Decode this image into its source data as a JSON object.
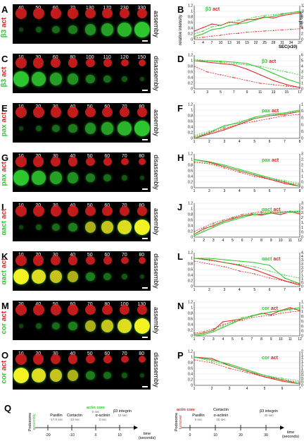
{
  "rows": [
    {
      "img_label": "A",
      "chart_label": "B",
      "vlabel_a": "β3",
      "vlabel_b": "act",
      "stage": "assembly",
      "times": [
        "40",
        "50",
        "60",
        "70",
        "130",
        "170",
        "230",
        "330"
      ],
      "chart_title_a": "β3",
      "chart_title_b": "act",
      "yleft_label": "relative intensity",
      "yright_label": "area μm²",
      "right_label2": "area",
      "xlabel": "SEC(x10)",
      "xticks": [
        "1",
        "4",
        "7",
        "10",
        "13",
        "16",
        "19",
        "22",
        "25",
        "28",
        "31",
        "34",
        "37"
      ],
      "ylticks": [
        "0",
        "0.2",
        "0.4",
        "0.6",
        "0.8",
        "1",
        "1.2"
      ],
      "yrticks": [
        "0",
        "2",
        "4",
        "6",
        "8",
        "10",
        "12"
      ]
    },
    {
      "img_label": "C",
      "chart_label": "D",
      "vlabel_a": "β3",
      "vlabel_b": "act",
      "stage": "disassembly",
      "times": [
        "10",
        "30",
        "60",
        "80",
        "100",
        "110",
        "120",
        "150"
      ],
      "chart_title_a": "β3",
      "chart_title_b": "act",
      "xticks": [
        "1",
        "3",
        "5",
        "7",
        "9",
        "11",
        "13",
        "15",
        "17"
      ],
      "ylticks": [
        "0",
        "0.2",
        "0.4",
        "0.6",
        "0.8",
        "1",
        "1.2"
      ],
      "yrticks": [
        "0",
        "1",
        "2",
        "3",
        "4",
        "5",
        "6"
      ]
    },
    {
      "img_label": "E",
      "chart_label": "F",
      "vlabel_a": "pax",
      "vlabel_b": "act",
      "stage": "assembly",
      "times": [
        "10",
        "20",
        "30",
        "40",
        "50",
        "60",
        "70",
        "80"
      ],
      "chart_title_a": "pax",
      "chart_title_b": "act",
      "xticks": [
        "1",
        "2",
        "3",
        "4",
        "5",
        "6",
        "7",
        "8"
      ],
      "ylticks": [
        "0",
        "0.2",
        "0.4",
        "0.6",
        "0.8",
        "1",
        "1.2"
      ],
      "yrticks": [
        "0",
        "0.2",
        "0.4",
        "0.6",
        "0.8",
        "1"
      ]
    },
    {
      "img_label": "G",
      "chart_label": "H",
      "vlabel_a": "pax",
      "vlabel_b": "act",
      "stage": "disassembly",
      "times": [
        "10",
        "20",
        "30",
        "40",
        "50",
        "60",
        "70",
        "80"
      ],
      "chart_title_a": "pax",
      "chart_title_b": "act",
      "xticks": [
        "1",
        "2",
        "3",
        "4",
        "5",
        "6",
        "7",
        "8"
      ],
      "ylticks": [
        "0",
        "0.2",
        "0.4",
        "0.6",
        "0.8",
        "1",
        "1.2"
      ],
      "yrticks": [
        "0",
        "0.5",
        "1",
        "1.5",
        "2",
        "2.5",
        "3"
      ]
    },
    {
      "img_label": "I",
      "chart_label": "J",
      "vlabel_a": "αact",
      "vlabel_b": "act",
      "stage": "assembly",
      "times": [
        "10",
        "20",
        "30",
        "40",
        "50",
        "60",
        "70",
        "80"
      ],
      "chart_title_a": "αact",
      "chart_title_b": "act",
      "xticks": [
        "1",
        "2",
        "3",
        "4",
        "5",
        "6",
        "7",
        "8",
        "9",
        "10",
        "11",
        "12"
      ],
      "ylticks": [
        "0",
        "0.2",
        "0.4",
        "0.6",
        "0.8",
        "1",
        "1.2"
      ],
      "yrticks": [
        "0",
        "0.5",
        "1",
        "1.5",
        "2",
        "2.5",
        "3",
        "3.5"
      ]
    },
    {
      "img_label": "K",
      "chart_label": "L",
      "vlabel_a": "αact",
      "vlabel_b": "act",
      "stage": "disassembly",
      "times": [
        "10",
        "20",
        "30",
        "40",
        "50",
        "60",
        "70",
        "80"
      ],
      "chart_title_a": "αact",
      "chart_title_b": "act",
      "xticks": [
        "1",
        "2",
        "3",
        "4",
        "5",
        "6",
        "7",
        "8"
      ],
      "ylticks": [
        "0",
        "0.2",
        "0.4",
        "0.6",
        "0.8",
        "1",
        "1.2"
      ],
      "yrticks": [
        "0",
        "0.5",
        "1",
        "1.5",
        "2",
        "2.5",
        "3",
        "3.5",
        "4",
        "4.5"
      ]
    },
    {
      "img_label": "M",
      "chart_label": "N",
      "vlabel_a": "cor",
      "vlabel_b": "act",
      "stage": "assembly",
      "times": [
        "20",
        "40",
        "50",
        "60",
        "70",
        "80",
        "100",
        "130"
      ],
      "chart_title_a": "cor",
      "chart_title_b": "act",
      "xticks": [
        "1",
        "2",
        "3",
        "4",
        "5",
        "6",
        "7",
        "8",
        "9",
        "10",
        "11",
        "12"
      ],
      "ylticks": [
        "0",
        "0.2",
        "0.4",
        "0.6",
        "0.8",
        "1",
        "1.2"
      ],
      "yrticks": [
        "0",
        "0.2",
        "0.4",
        "0.6",
        "0.8",
        "1",
        "1.2",
        "1.4"
      ]
    },
    {
      "img_label": "O",
      "chart_label": "P",
      "vlabel_a": "cor",
      "vlabel_b": "act",
      "stage": "disassembly",
      "times": [
        "10",
        "20",
        "30",
        "40",
        "50",
        "60",
        "70",
        "80"
      ],
      "chart_title_a": "cor",
      "chart_title_b": "act",
      "xticks": [
        "1",
        "2",
        "3",
        "4",
        "5",
        "6",
        "7"
      ],
      "ylticks": [
        "0",
        "0.2",
        "0.4",
        "0.6",
        "0.8",
        "1",
        "1.2"
      ],
      "yrticks": [
        "0",
        "0.2",
        "0.4",
        "0.6",
        "0.8",
        "1",
        "1.2",
        "1.4",
        "1.6",
        "1.8",
        "2"
      ]
    }
  ],
  "colors": {
    "green": "#2ec62e",
    "red": "#e32020",
    "yellow": "#f4f222"
  },
  "chart_data": [
    {
      "type": "line",
      "panel": "B",
      "series": [
        {
          "color": "red",
          "values": [
            0.3,
            0.42,
            0.55,
            0.5,
            0.62,
            0.58,
            0.7,
            0.72,
            0.8,
            0.76,
            0.85,
            0.9,
            0.95
          ]
        },
        {
          "color": "green",
          "values": [
            0.1,
            0.2,
            0.35,
            0.4,
            0.5,
            0.55,
            0.6,
            0.7,
            0.78,
            0.82,
            0.9,
            0.95,
            1.0
          ]
        },
        {
          "color": "red-dashed",
          "values": [
            0.05,
            0.08,
            0.12,
            0.15,
            0.2,
            0.22,
            0.26,
            0.28,
            0.3,
            0.32,
            0.34,
            0.36,
            0.38
          ]
        },
        {
          "color": "green-dashed",
          "values": [
            0.2,
            0.3,
            0.45,
            0.5,
            0.6,
            0.68,
            0.72,
            0.8,
            0.85,
            0.88,
            0.92,
            0.95,
            0.98
          ]
        }
      ]
    },
    {
      "type": "line",
      "panel": "D",
      "series": [
        {
          "color": "red",
          "values": [
            1.0,
            0.95,
            0.9,
            0.85,
            0.7,
            0.5,
            0.3,
            0.15,
            0.05
          ]
        },
        {
          "color": "green",
          "values": [
            1.0,
            1.0,
            0.98,
            0.95,
            0.9,
            0.75,
            0.55,
            0.35,
            0.2
          ]
        },
        {
          "color": "red-dashed",
          "values": [
            0.8,
            0.6,
            0.5,
            0.4,
            0.3,
            0.2,
            0.15,
            0.1,
            0.05
          ]
        },
        {
          "color": "green-dashed",
          "values": [
            1.05,
            1.0,
            0.95,
            0.9,
            0.85,
            0.8,
            0.7,
            0.6,
            0.5
          ]
        }
      ]
    },
    {
      "type": "line",
      "panel": "F",
      "series": [
        {
          "color": "red",
          "values": [
            0.0,
            0.15,
            0.3,
            0.5,
            0.7,
            0.8,
            0.85,
            0.95
          ]
        },
        {
          "color": "green",
          "values": [
            0.0,
            0.2,
            0.45,
            0.55,
            0.75,
            0.85,
            0.9,
            1.0
          ]
        },
        {
          "color": "red-dashed",
          "values": [
            0.05,
            0.2,
            0.35,
            0.5,
            0.6,
            0.7,
            0.8,
            0.85
          ]
        },
        {
          "color": "green-dashed",
          "values": [
            0.1,
            0.25,
            0.4,
            0.6,
            0.7,
            0.8,
            0.9,
            0.95
          ]
        }
      ]
    },
    {
      "type": "line",
      "panel": "H",
      "series": [
        {
          "color": "red",
          "values": [
            1.0,
            0.9,
            0.75,
            0.6,
            0.45,
            0.3,
            0.15,
            0.05
          ]
        },
        {
          "color": "green",
          "values": [
            1.0,
            0.92,
            0.8,
            0.65,
            0.5,
            0.35,
            0.2,
            0.05
          ]
        },
        {
          "color": "red-dashed",
          "values": [
            0.9,
            0.85,
            0.7,
            0.55,
            0.4,
            0.3,
            0.2,
            0.1
          ]
        },
        {
          "color": "green-dashed",
          "values": [
            0.95,
            0.85,
            0.75,
            0.6,
            0.45,
            0.35,
            0.25,
            0.15
          ]
        }
      ]
    },
    {
      "type": "line",
      "panel": "J",
      "series": [
        {
          "color": "red",
          "values": [
            0.1,
            0.3,
            0.4,
            0.55,
            0.65,
            0.75,
            0.8,
            0.78,
            0.85,
            0.8,
            0.9,
            0.82
          ]
        },
        {
          "color": "green",
          "values": [
            0.05,
            0.2,
            0.35,
            0.5,
            0.6,
            0.7,
            0.78,
            0.82,
            0.85,
            0.86,
            0.88,
            0.88
          ]
        },
        {
          "color": "red-dashed",
          "values": [
            0.2,
            0.35,
            0.5,
            0.6,
            0.7,
            0.8,
            0.85,
            0.9,
            0.88,
            0.9,
            0.92,
            0.9
          ]
        },
        {
          "color": "green-dashed",
          "values": [
            0.1,
            0.25,
            0.45,
            0.55,
            0.68,
            0.75,
            0.82,
            0.86,
            0.9,
            0.9,
            0.92,
            0.93
          ]
        }
      ]
    },
    {
      "type": "line",
      "panel": "L",
      "series": [
        {
          "color": "red",
          "values": [
            1.0,
            0.95,
            0.85,
            0.75,
            0.6,
            0.4,
            0.2,
            0.05
          ]
        },
        {
          "color": "green",
          "values": [
            1.0,
            1.0,
            0.95,
            0.9,
            0.85,
            0.75,
            0.3,
            0.1
          ]
        },
        {
          "color": "red-dashed",
          "values": [
            0.9,
            0.8,
            0.7,
            0.55,
            0.45,
            0.3,
            0.2,
            0.1
          ]
        },
        {
          "color": "green-dashed",
          "values": [
            1.0,
            0.92,
            0.85,
            0.78,
            0.7,
            0.55,
            0.4,
            0.3
          ]
        }
      ]
    },
    {
      "type": "line",
      "panel": "N",
      "series": [
        {
          "color": "red",
          "values": [
            0.05,
            0.1,
            0.2,
            0.5,
            0.55,
            0.6,
            0.7,
            0.8,
            0.75,
            0.9,
            1.0,
            0.9
          ]
        },
        {
          "color": "green",
          "values": [
            0.0,
            0.05,
            0.15,
            0.3,
            0.45,
            0.6,
            0.7,
            0.78,
            0.85,
            0.9,
            0.95,
            1.0
          ]
        },
        {
          "color": "red-dashed",
          "values": [
            0.1,
            0.15,
            0.25,
            0.4,
            0.5,
            0.55,
            0.65,
            0.7,
            0.72,
            0.8,
            0.85,
            0.88
          ]
        },
        {
          "color": "green-dashed",
          "values": [
            0.05,
            0.1,
            0.2,
            0.35,
            0.5,
            0.65,
            0.72,
            0.8,
            0.85,
            0.88,
            0.92,
            0.95
          ]
        }
      ]
    },
    {
      "type": "line",
      "panel": "P",
      "series": [
        {
          "color": "red",
          "values": [
            1.0,
            0.95,
            0.7,
            0.5,
            0.3,
            0.15,
            0.05
          ]
        },
        {
          "color": "green",
          "values": [
            1.0,
            0.9,
            0.75,
            0.55,
            0.35,
            0.2,
            0.05
          ]
        },
        {
          "color": "red-dashed",
          "values": [
            0.9,
            0.8,
            0.6,
            0.45,
            0.3,
            0.2,
            0.1
          ]
        },
        {
          "color": "green-dashed",
          "values": [
            1.0,
            0.85,
            0.7,
            0.5,
            0.35,
            0.25,
            0.15
          ]
        }
      ]
    }
  ],
  "timeline": {
    "label": "Q",
    "assembly": {
      "vtitle_a": "Podosome",
      "vtitle_b": "assembly",
      "ticks": [
        "-20",
        "-10",
        "0",
        "10"
      ],
      "events": [
        {
          "name": "Paxillin",
          "time": "-17.5 sec",
          "color": "black"
        },
        {
          "name": "Cortactin",
          "time": "-10 sec",
          "color": "black"
        },
        {
          "name": "actin core",
          "time": "0 sec",
          "color": "green"
        },
        {
          "name": "α-actinin",
          "time": "0 sec",
          "color": "black"
        },
        {
          "name": "β3 integrin",
          "time": "10 sec",
          "color": "black"
        }
      ]
    },
    "turnover": {
      "vtitle_a": "Podosome",
      "vtitle_b": "turnover",
      "ticks": [
        "0",
        "10",
        "20",
        "30"
      ],
      "axis_label_a": "time",
      "axis_label_b": "(seconds)",
      "events": [
        {
          "name": "actin core",
          "time": "",
          "color": "red"
        },
        {
          "name": "Paxillin",
          "time": "5 sec",
          "color": "black"
        },
        {
          "name": "Cortactin",
          "time": "",
          "color": "black"
        },
        {
          "name": "α-actinin",
          "time": "15 sec",
          "color": "black"
        },
        {
          "name": "β3 integrin",
          "time": "30 sec",
          "color": "black"
        }
      ]
    },
    "axis_label_a": "time",
    "axis_label_b": "(seconds)"
  }
}
